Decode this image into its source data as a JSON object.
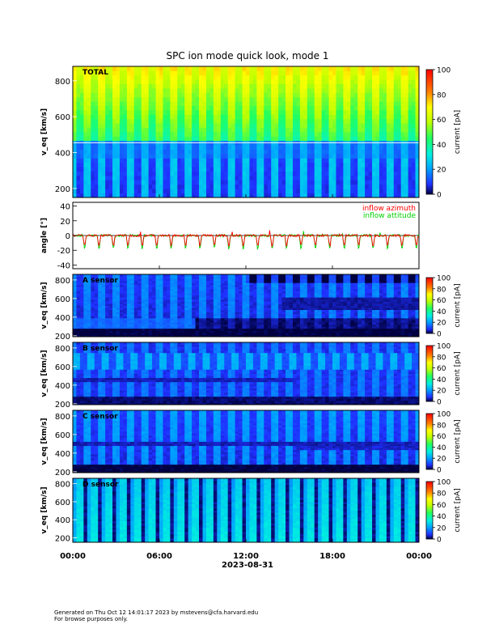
{
  "title": "SPC ion mode quick look, mode 1",
  "footer": {
    "line1": "Generated on Thu Oct 12 14:01:17 2023 by mstevens@cfa.harvard.edu",
    "line2": "For browse purposes only."
  },
  "colors": {
    "inflow_azimuth": "#ff0000",
    "inflow_attitude": "#00d000"
  },
  "chart_data": [
    {
      "type": "heatmap",
      "panel_label": "TOTAL",
      "ylabel": "v_eq [km/s]",
      "yticks": [
        200,
        400,
        600,
        800
      ],
      "ylim": [
        150,
        880
      ],
      "colorbar": {
        "label": "current [pA]",
        "ticks": [
          0,
          20,
          40,
          60,
          80,
          100
        ],
        "range": [
          0,
          100
        ]
      },
      "pattern": "total",
      "n_cycles": 24
    },
    {
      "type": "line",
      "ylabel": "angle [°]",
      "yticks": [
        -40,
        -20,
        0,
        20,
        40
      ],
      "ylim": [
        -45,
        45
      ],
      "grid": false,
      "legend_position": "top-right",
      "series": [
        {
          "name": "inflow azimuth",
          "color": "#ff0000",
          "baseline": 0,
          "dip": -14
        },
        {
          "name": "inflow attitude",
          "color": "#00d000",
          "baseline": 0,
          "dip": -18
        }
      ],
      "n_cycles": 24
    },
    {
      "type": "heatmap",
      "panel_label": "A sensor",
      "ylabel": "v_eq [km/s]",
      "yticks": [
        200,
        400,
        600,
        800
      ],
      "ylim": [
        190,
        860
      ],
      "colorbar": {
        "label": "current [pA]",
        "ticks": [
          0,
          20,
          40,
          60,
          80,
          100
        ],
        "range": [
          0,
          100
        ]
      },
      "pattern": "A",
      "n_cycles": 24
    },
    {
      "type": "heatmap",
      "panel_label": "B sensor",
      "ylabel": "v_eq [km/s]",
      "yticks": [
        200,
        400,
        600,
        800
      ],
      "ylim": [
        190,
        860
      ],
      "colorbar": {
        "label": "current [pA]",
        "ticks": [
          0,
          20,
          40,
          60,
          80,
          100
        ],
        "range": [
          0,
          100
        ]
      },
      "pattern": "B",
      "n_cycles": 24
    },
    {
      "type": "heatmap",
      "panel_label": "C sensor",
      "ylabel": "v_eq [km/s]",
      "yticks": [
        200,
        400,
        600,
        800
      ],
      "ylim": [
        190,
        860
      ],
      "colorbar": {
        "label": "current [pA]",
        "ticks": [
          0,
          20,
          40,
          60,
          80,
          100
        ],
        "range": [
          0,
          100
        ]
      },
      "pattern": "C",
      "n_cycles": 24
    },
    {
      "type": "heatmap",
      "panel_label": "D sensor",
      "ylabel": "v_eq [km/s]",
      "yticks": [
        200,
        400,
        600,
        800
      ],
      "ylim": [
        150,
        860
      ],
      "colorbar": {
        "label": "current [pA]",
        "ticks": [
          0,
          20,
          40,
          60,
          80,
          100
        ],
        "range": [
          0,
          100
        ]
      },
      "pattern": "D",
      "n_cycles": 24
    }
  ],
  "xaxis": {
    "ticks": [
      "00:00",
      "06:00",
      "12:00",
      "18:00",
      "00:00"
    ],
    "tick_hours": [
      0,
      6,
      12,
      18,
      24
    ],
    "range_hours": [
      0,
      24
    ],
    "date_label": "2023-08-31"
  }
}
